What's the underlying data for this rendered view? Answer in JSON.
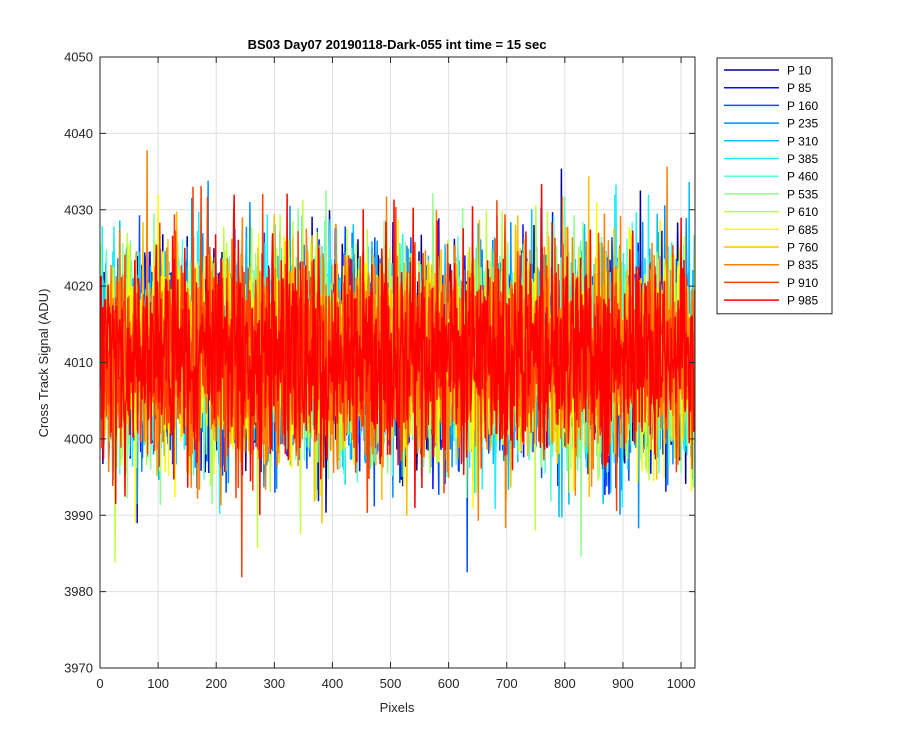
{
  "chart_data": {
    "type": "line",
    "title": "BS03 Day07 20190118-Dark-055 int time = 15 sec",
    "xlabel": "Pixels",
    "ylabel": "Cross Track Signal (ADU)",
    "xlim": [
      0,
      1024
    ],
    "ylim": [
      3970,
      4050
    ],
    "xticks": [
      0,
      100,
      200,
      300,
      400,
      500,
      600,
      700,
      800,
      900,
      1000
    ],
    "yticks": [
      3970,
      3980,
      3990,
      4000,
      4010,
      4020,
      4030,
      4040,
      4050
    ],
    "grid": true,
    "legend_position": "outside-right",
    "noise_model": {
      "center": 4011,
      "typical_low": 3998,
      "typical_high": 4025,
      "points_per_series": 1024
    },
    "series": [
      {
        "name": "P 10",
        "color": "#00008f"
      },
      {
        "name": "P 85",
        "color": "#0010ff"
      },
      {
        "name": "P 160",
        "color": "#0050ff"
      },
      {
        "name": "P 235",
        "color": "#0090ff"
      },
      {
        "name": "P 310",
        "color": "#00c0ff"
      },
      {
        "name": "P 385",
        "color": "#20f0ff"
      },
      {
        "name": "P 460",
        "color": "#60ffd0"
      },
      {
        "name": "P 535",
        "color": "#90ff90"
      },
      {
        "name": "P 610",
        "color": "#c0ff40"
      },
      {
        "name": "P 685",
        "color": "#ffff00"
      },
      {
        "name": "P 760",
        "color": "#ffc000"
      },
      {
        "name": "P 835",
        "color": "#ff8000"
      },
      {
        "name": "P 910",
        "color": "#ff4000"
      },
      {
        "name": "P 985",
        "color": "#ff0000"
      }
    ]
  }
}
